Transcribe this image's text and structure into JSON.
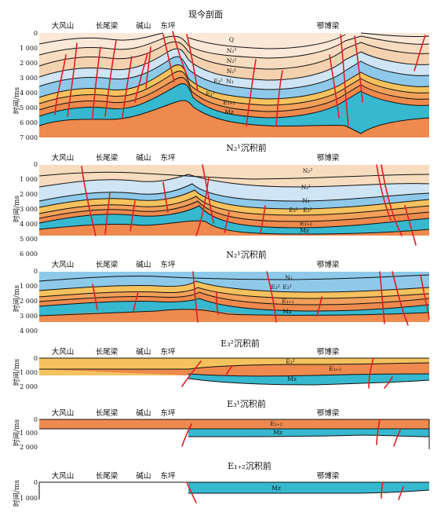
{
  "panels": [
    {
      "title": "现今剖面",
      "y_axis_label": "时间/ms",
      "y_ticks": [
        "0",
        "1 000",
        "2 000",
        "3 000",
        "4 000",
        "5 000",
        "6 000",
        "7 000"
      ],
      "locations": [
        "大风山",
        "长尾梁",
        "碱山",
        "东坪",
        "鄂博梁"
      ],
      "unit_labels": [
        "Q",
        "N₂³",
        "N₂²",
        "N₂¹",
        "N₁",
        "E₃²",
        "E₃¹",
        "E₁₊₂",
        "Mz"
      ]
    },
    {
      "title": "N₂¹沉积前",
      "y_axis_label": "时间/ms",
      "y_ticks": [
        "0",
        "1 000",
        "2 000",
        "3 000",
        "4 000",
        "5 000",
        "6 000"
      ],
      "locations": [
        "大风山",
        "长尾梁",
        "碱山",
        "东坪",
        "鄂博梁"
      ],
      "unit_labels": [
        "N₂²",
        "N₂¹",
        "N₁",
        "E₃²",
        "E₃¹",
        "E₁₊₂",
        "Mz"
      ]
    },
    {
      "title": "N₂¹沉积前",
      "y_axis_label": "时间/ms",
      "y_ticks": [
        "0",
        "1 000",
        "2 000",
        "3 000",
        "4 000"
      ],
      "locations": [
        "大风山",
        "长尾梁",
        "碱山",
        "东坪",
        "鄂博梁"
      ],
      "unit_labels": [
        "N₁",
        "E₃²",
        "E₃¹",
        "E₁₊₂",
        "Mz"
      ]
    },
    {
      "title": "E₃²沉积前",
      "y_axis_label": "时间/ms",
      "y_ticks": [
        "0",
        "1 000",
        "2 000"
      ],
      "locations": [
        "大风山",
        "长尾梁",
        "碱山",
        "东坪",
        "鄂博梁"
      ],
      "unit_labels": [
        "E₃²",
        "E₁₊₂",
        "Mz"
      ]
    },
    {
      "title": "E₃¹沉积前",
      "y_axis_label": "时间/ms",
      "y_ticks": [
        "0",
        "1 000",
        "2 000"
      ],
      "locations": [
        "大风山",
        "长尾梁",
        "碱山",
        "东坪",
        "鄂博梁"
      ],
      "unit_labels": [
        "E₁₊₂",
        "Mz"
      ]
    },
    {
      "title": "E₁₊₂沉积前",
      "y_axis_label": "时间/ms",
      "y_ticks": [
        "0",
        "1 000"
      ],
      "locations": [
        "大风山",
        "长尾梁",
        "碱山",
        "东坪",
        "鄂博梁"
      ],
      "unit_labels": [
        "Mz"
      ]
    }
  ],
  "colors": {
    "Q": "#fbe8d6",
    "N23": "#f8dcc0",
    "N22": "#f4d2b0",
    "N21": "#cfe4f4",
    "N1": "#8ec9ea",
    "E32": "#f6c25e",
    "E31": "#f2a05a",
    "E12": "#ee8a4e",
    "Mz": "#36b8cf",
    "fault": "#e31c24"
  }
}
